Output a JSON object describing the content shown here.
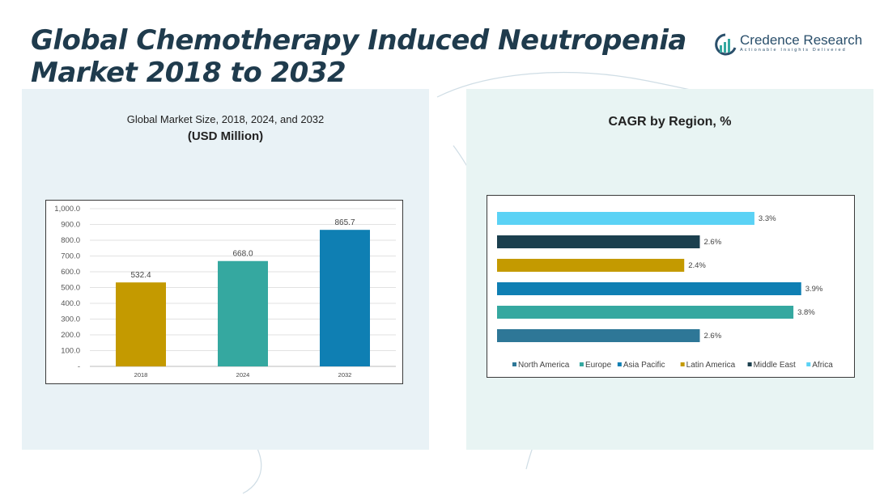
{
  "header": {
    "title": "Global Chemotherapy Induced Neutropenia Market 2018 to 2032"
  },
  "logo": {
    "name": "Credence Research",
    "tagline": "Actionable Insights Delivered"
  },
  "left_panel": {
    "title": "Global Market Size, 2018, 2024, and 2032",
    "subtitle": "(USD Million)"
  },
  "right_panel": {
    "title": "CAGR by Region, %"
  },
  "colors": {
    "gold": "#c49a00",
    "teal": "#35a8a0",
    "blue": "#0f7fb3",
    "steel": "#2e7797",
    "navy": "#1b3f4e",
    "sky": "#5bd2f5"
  },
  "chart_data": [
    {
      "type": "bar",
      "title": "Global Market Size, 2018, 2024, and 2032",
      "ylabel": "(USD Million)",
      "categories": [
        "2018",
        "2024",
        "2032"
      ],
      "values": [
        532.4,
        668.0,
        865.7
      ],
      "value_labels": [
        "532.4",
        "668.0",
        "865.7"
      ],
      "bar_colors": [
        "#c49a00",
        "#35a8a0",
        "#0f7fb3"
      ],
      "ylim": [
        0,
        1000
      ],
      "yticks": [
        "-",
        "100.0",
        "200.0",
        "300.0",
        "400.0",
        "500.0",
        "600.0",
        "700.0",
        "800.0",
        "900.0",
        "1,000.0"
      ],
      "grid": true
    },
    {
      "type": "bar",
      "orientation": "horizontal",
      "title": "CAGR by Region, %",
      "categories": [
        "North America",
        "Europe",
        "Asia Pacific",
        "Latin America",
        "Middle East",
        "Africa"
      ],
      "values": [
        2.6,
        3.8,
        3.9,
        2.4,
        2.6,
        3.3
      ],
      "value_labels": [
        "2.6%",
        "3.8%",
        "3.9%",
        "2.4%",
        "2.6%",
        "3.3%"
      ],
      "bar_colors": [
        "#2e7797",
        "#35a8a0",
        "#0f7fb3",
        "#c49a00",
        "#1b3f4e",
        "#5bd2f5"
      ],
      "xlim": [
        0,
        4.1
      ],
      "legend": "bottom",
      "grid": false
    }
  ]
}
